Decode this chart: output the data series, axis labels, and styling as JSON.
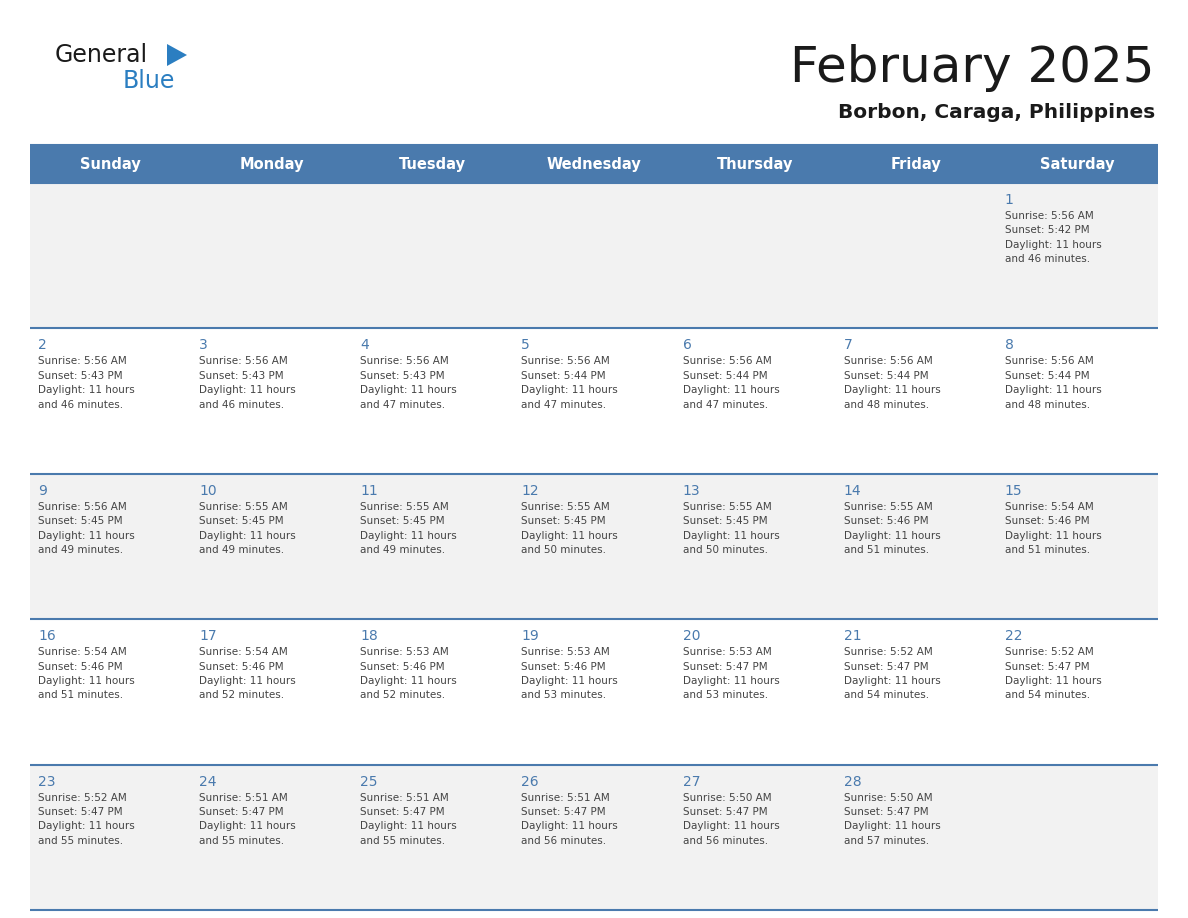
{
  "title": "February 2025",
  "subtitle": "Borbon, Caraga, Philippines",
  "days_of_week": [
    "Sunday",
    "Monday",
    "Tuesday",
    "Wednesday",
    "Thursday",
    "Friday",
    "Saturday"
  ],
  "header_bg": "#4a7aad",
  "header_text_color": "#ffffff",
  "cell_bg_odd": "#f2f2f2",
  "cell_bg_even": "#ffffff",
  "day_number_color": "#4a7aad",
  "text_color": "#444444",
  "line_color": "#4a7aad",
  "logo_color1": "#1a1a1a",
  "logo_color2": "#2b7ec1",
  "logo_triangle_color": "#2b7ec1",
  "calendar_data": [
    [
      null,
      null,
      null,
      null,
      null,
      null,
      {
        "day": 1,
        "sunrise": "5:56 AM",
        "sunset": "5:42 PM",
        "daylight": "11 hours\nand 46 minutes."
      }
    ],
    [
      {
        "day": 2,
        "sunrise": "5:56 AM",
        "sunset": "5:43 PM",
        "daylight": "11 hours\nand 46 minutes."
      },
      {
        "day": 3,
        "sunrise": "5:56 AM",
        "sunset": "5:43 PM",
        "daylight": "11 hours\nand 46 minutes."
      },
      {
        "day": 4,
        "sunrise": "5:56 AM",
        "sunset": "5:43 PM",
        "daylight": "11 hours\nand 47 minutes."
      },
      {
        "day": 5,
        "sunrise": "5:56 AM",
        "sunset": "5:44 PM",
        "daylight": "11 hours\nand 47 minutes."
      },
      {
        "day": 6,
        "sunrise": "5:56 AM",
        "sunset": "5:44 PM",
        "daylight": "11 hours\nand 47 minutes."
      },
      {
        "day": 7,
        "sunrise": "5:56 AM",
        "sunset": "5:44 PM",
        "daylight": "11 hours\nand 48 minutes."
      },
      {
        "day": 8,
        "sunrise": "5:56 AM",
        "sunset": "5:44 PM",
        "daylight": "11 hours\nand 48 minutes."
      }
    ],
    [
      {
        "day": 9,
        "sunrise": "5:56 AM",
        "sunset": "5:45 PM",
        "daylight": "11 hours\nand 49 minutes."
      },
      {
        "day": 10,
        "sunrise": "5:55 AM",
        "sunset": "5:45 PM",
        "daylight": "11 hours\nand 49 minutes."
      },
      {
        "day": 11,
        "sunrise": "5:55 AM",
        "sunset": "5:45 PM",
        "daylight": "11 hours\nand 49 minutes."
      },
      {
        "day": 12,
        "sunrise": "5:55 AM",
        "sunset": "5:45 PM",
        "daylight": "11 hours\nand 50 minutes."
      },
      {
        "day": 13,
        "sunrise": "5:55 AM",
        "sunset": "5:45 PM",
        "daylight": "11 hours\nand 50 minutes."
      },
      {
        "day": 14,
        "sunrise": "5:55 AM",
        "sunset": "5:46 PM",
        "daylight": "11 hours\nand 51 minutes."
      },
      {
        "day": 15,
        "sunrise": "5:54 AM",
        "sunset": "5:46 PM",
        "daylight": "11 hours\nand 51 minutes."
      }
    ],
    [
      {
        "day": 16,
        "sunrise": "5:54 AM",
        "sunset": "5:46 PM",
        "daylight": "11 hours\nand 51 minutes."
      },
      {
        "day": 17,
        "sunrise": "5:54 AM",
        "sunset": "5:46 PM",
        "daylight": "11 hours\nand 52 minutes."
      },
      {
        "day": 18,
        "sunrise": "5:53 AM",
        "sunset": "5:46 PM",
        "daylight": "11 hours\nand 52 minutes."
      },
      {
        "day": 19,
        "sunrise": "5:53 AM",
        "sunset": "5:46 PM",
        "daylight": "11 hours\nand 53 minutes."
      },
      {
        "day": 20,
        "sunrise": "5:53 AM",
        "sunset": "5:47 PM",
        "daylight": "11 hours\nand 53 minutes."
      },
      {
        "day": 21,
        "sunrise": "5:52 AM",
        "sunset": "5:47 PM",
        "daylight": "11 hours\nand 54 minutes."
      },
      {
        "day": 22,
        "sunrise": "5:52 AM",
        "sunset": "5:47 PM",
        "daylight": "11 hours\nand 54 minutes."
      }
    ],
    [
      {
        "day": 23,
        "sunrise": "5:52 AM",
        "sunset": "5:47 PM",
        "daylight": "11 hours\nand 55 minutes."
      },
      {
        "day": 24,
        "sunrise": "5:51 AM",
        "sunset": "5:47 PM",
        "daylight": "11 hours\nand 55 minutes."
      },
      {
        "day": 25,
        "sunrise": "5:51 AM",
        "sunset": "5:47 PM",
        "daylight": "11 hours\nand 55 minutes."
      },
      {
        "day": 26,
        "sunrise": "5:51 AM",
        "sunset": "5:47 PM",
        "daylight": "11 hours\nand 56 minutes."
      },
      {
        "day": 27,
        "sunrise": "5:50 AM",
        "sunset": "5:47 PM",
        "daylight": "11 hours\nand 56 minutes."
      },
      {
        "day": 28,
        "sunrise": "5:50 AM",
        "sunset": "5:47 PM",
        "daylight": "11 hours\nand 57 minutes."
      },
      null
    ]
  ]
}
